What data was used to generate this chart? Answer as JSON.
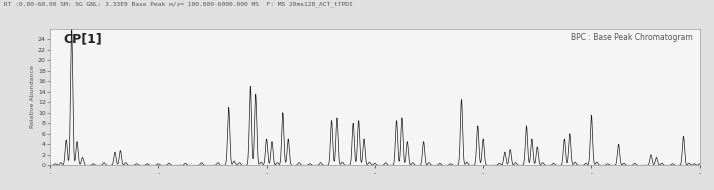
{
  "title_top": "RT :0.00-60.00 SM: 5G GNL: 3.33E9 Base Peak m/z= 100.000-6000.000 MS  F: MS 20ms128_ACT_tTPDI",
  "label_cp": "CP[1]",
  "label_bpc": "BPC : Base Peak Chromatogram",
  "ylabel": "Relative Abundance",
  "ylim": [
    0,
    26
  ],
  "yticks": [
    0,
    2,
    4,
    6,
    8,
    10,
    12,
    14,
    16,
    18,
    20,
    22,
    24
  ],
  "fig_bg": "#e0e0e0",
  "plot_bg": "#f5f5f5",
  "line_color": "#1a1a1a",
  "peaks": [
    [
      0.5,
      0.3
    ],
    [
      1.0,
      0.5
    ],
    [
      1.5,
      4.8
    ],
    [
      2.0,
      26.0
    ],
    [
      2.5,
      4.5
    ],
    [
      3.0,
      1.5
    ],
    [
      4.0,
      0.3
    ],
    [
      5.0,
      0.5
    ],
    [
      6.0,
      2.5
    ],
    [
      6.5,
      2.8
    ],
    [
      7.0,
      0.5
    ],
    [
      8.0,
      0.3
    ],
    [
      9.0,
      0.3
    ],
    [
      10.0,
      0.3
    ],
    [
      11.0,
      0.4
    ],
    [
      12.5,
      0.4
    ],
    [
      14.0,
      0.5
    ],
    [
      15.5,
      0.5
    ],
    [
      16.5,
      11.0
    ],
    [
      17.0,
      0.8
    ],
    [
      17.5,
      0.5
    ],
    [
      18.5,
      15.0
    ],
    [
      19.0,
      13.5
    ],
    [
      19.5,
      0.6
    ],
    [
      20.0,
      5.0
    ],
    [
      20.5,
      4.5
    ],
    [
      21.0,
      0.5
    ],
    [
      21.5,
      10.0
    ],
    [
      22.0,
      5.0
    ],
    [
      23.0,
      0.5
    ],
    [
      24.0,
      0.3
    ],
    [
      25.0,
      0.5
    ],
    [
      26.0,
      8.5
    ],
    [
      26.5,
      9.0
    ],
    [
      27.0,
      0.6
    ],
    [
      28.0,
      8.0
    ],
    [
      28.5,
      8.5
    ],
    [
      29.0,
      5.0
    ],
    [
      29.5,
      0.6
    ],
    [
      30.0,
      0.4
    ],
    [
      31.0,
      0.5
    ],
    [
      32.0,
      8.5
    ],
    [
      32.5,
      9.0
    ],
    [
      33.0,
      4.5
    ],
    [
      33.5,
      0.5
    ],
    [
      34.5,
      4.5
    ],
    [
      35.0,
      0.5
    ],
    [
      36.0,
      0.4
    ],
    [
      37.0,
      0.3
    ],
    [
      38.0,
      12.5
    ],
    [
      38.5,
      0.6
    ],
    [
      39.5,
      7.5
    ],
    [
      40.0,
      5.0
    ],
    [
      41.5,
      0.4
    ],
    [
      42.0,
      2.5
    ],
    [
      42.5,
      3.0
    ],
    [
      43.0,
      0.5
    ],
    [
      44.0,
      7.5
    ],
    [
      44.5,
      5.0
    ],
    [
      45.0,
      3.5
    ],
    [
      45.5,
      0.5
    ],
    [
      46.5,
      0.4
    ],
    [
      47.5,
      5.0
    ],
    [
      48.0,
      6.0
    ],
    [
      48.5,
      0.6
    ],
    [
      49.5,
      0.4
    ],
    [
      50.0,
      9.5
    ],
    [
      50.5,
      0.6
    ],
    [
      51.5,
      0.3
    ],
    [
      52.5,
      4.0
    ],
    [
      53.0,
      0.4
    ],
    [
      54.0,
      0.4
    ],
    [
      55.5,
      2.0
    ],
    [
      56.0,
      1.5
    ],
    [
      56.5,
      0.4
    ],
    [
      57.5,
      0.3
    ],
    [
      58.5,
      5.5
    ],
    [
      59.0,
      0.4
    ],
    [
      59.5,
      0.3
    ],
    [
      60.0,
      0.3
    ]
  ],
  "xmin": 0,
  "xmax": 60,
  "title_fontsize": 4.5,
  "ylabel_fontsize": 4.5,
  "ytick_fontsize": 4.5,
  "cp_fontsize": 9.0,
  "bpc_fontsize": 5.5
}
